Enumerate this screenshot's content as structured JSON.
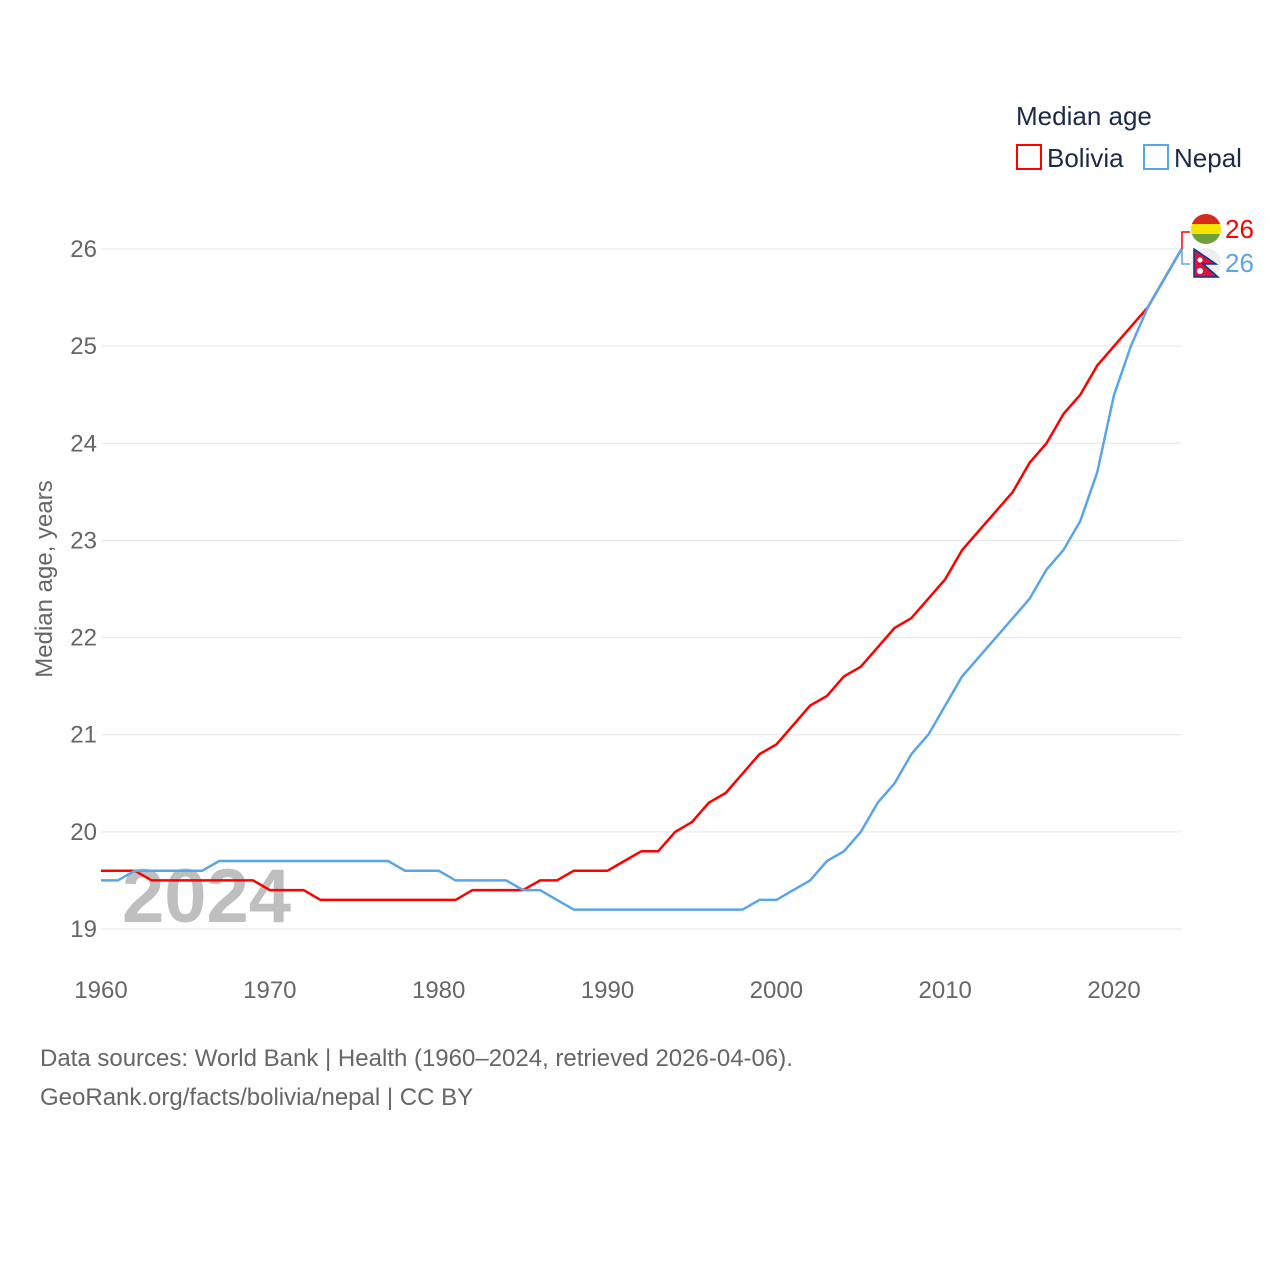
{
  "chart_data": {
    "type": "line",
    "title": "Median age",
    "ylabel": "Median age, years",
    "xlabel": "",
    "xlim": [
      1960,
      2024
    ],
    "ylim": [
      19,
      26
    ],
    "x_ticks": [
      1960,
      1970,
      1980,
      1990,
      2000,
      2010,
      2020
    ],
    "y_ticks": [
      19,
      20,
      21,
      22,
      23,
      24,
      25,
      26
    ],
    "grid": true,
    "legend_position": "top-right",
    "watermark_year": "2024",
    "x": [
      1960,
      1961,
      1962,
      1963,
      1964,
      1965,
      1966,
      1967,
      1968,
      1969,
      1970,
      1971,
      1972,
      1973,
      1974,
      1975,
      1976,
      1977,
      1978,
      1979,
      1980,
      1981,
      1982,
      1983,
      1984,
      1985,
      1986,
      1987,
      1988,
      1989,
      1990,
      1991,
      1992,
      1993,
      1994,
      1995,
      1996,
      1997,
      1998,
      1999,
      2000,
      2001,
      2002,
      2003,
      2004,
      2005,
      2006,
      2007,
      2008,
      2009,
      2010,
      2011,
      2012,
      2013,
      2014,
      2015,
      2016,
      2017,
      2018,
      2019,
      2020,
      2021,
      2022,
      2023,
      2024
    ],
    "series": [
      {
        "name": "Bolivia",
        "color": "#ff0000",
        "end_label": "26",
        "values": [
          19.6,
          19.6,
          19.6,
          19.5,
          19.5,
          19.5,
          19.5,
          19.5,
          19.5,
          19.5,
          19.4,
          19.4,
          19.4,
          19.3,
          19.3,
          19.3,
          19.3,
          19.3,
          19.3,
          19.3,
          19.3,
          19.3,
          19.4,
          19.4,
          19.4,
          19.4,
          19.5,
          19.5,
          19.6,
          19.6,
          19.6,
          19.7,
          19.8,
          19.8,
          20.0,
          20.1,
          20.3,
          20.4,
          20.6,
          20.8,
          20.9,
          21.1,
          21.3,
          21.4,
          21.6,
          21.7,
          21.9,
          22.1,
          22.2,
          22.4,
          22.6,
          22.9,
          23.1,
          23.3,
          23.5,
          23.8,
          24.0,
          24.3,
          24.5,
          24.8,
          25.0,
          25.2,
          25.4,
          25.7,
          26.0
        ]
      },
      {
        "name": "Nepal",
        "color": "#5aa5ea",
        "end_label": "26",
        "values": [
          19.5,
          19.5,
          19.6,
          19.6,
          19.6,
          19.6,
          19.6,
          19.7,
          19.7,
          19.7,
          19.7,
          19.7,
          19.7,
          19.7,
          19.7,
          19.7,
          19.7,
          19.7,
          19.6,
          19.6,
          19.6,
          19.5,
          19.5,
          19.5,
          19.5,
          19.4,
          19.4,
          19.3,
          19.2,
          19.2,
          19.2,
          19.2,
          19.2,
          19.2,
          19.2,
          19.2,
          19.2,
          19.2,
          19.2,
          19.3,
          19.3,
          19.4,
          19.5,
          19.7,
          19.8,
          20.0,
          20.3,
          20.5,
          20.8,
          21.0,
          21.3,
          21.6,
          21.8,
          22.0,
          22.2,
          22.4,
          22.7,
          22.9,
          23.2,
          23.7,
          24.5,
          25.0,
          25.4,
          25.7,
          26.0
        ]
      }
    ]
  },
  "footer": {
    "line1": "Data sources: World Bank | Health (1960–2024, retrieved 2026-04-06).",
    "line2": "GeoRank.org/facts/bolivia/nepal | CC BY"
  }
}
